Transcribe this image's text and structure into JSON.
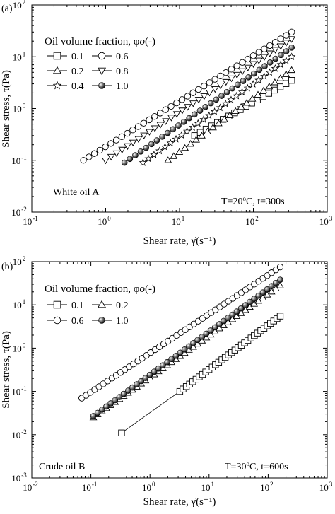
{
  "chart_data": [
    {
      "type": "scatter",
      "panel_label": "(a)",
      "xscale": "log",
      "yscale": "log",
      "xlim": [
        0.1,
        1000
      ],
      "ylim": [
        0.01,
        100
      ],
      "xticks": [
        {
          "value": 0.1,
          "label": "10",
          "exp": "-1"
        },
        {
          "value": 1,
          "label": "10",
          "exp": "0"
        },
        {
          "value": 10,
          "label": "10",
          "exp": "1"
        },
        {
          "value": 100,
          "label": "10",
          "exp": "2"
        },
        {
          "value": 1000,
          "label": "10",
          "exp": "3"
        }
      ],
      "yticks": [
        {
          "value": 0.01,
          "label": "10",
          "exp": "-2"
        },
        {
          "value": 0.1,
          "label": "10",
          "exp": "-1"
        },
        {
          "value": 1,
          "label": "10",
          "exp": "0"
        },
        {
          "value": 10,
          "label": "10",
          "exp": "1"
        },
        {
          "value": 100,
          "label": "10",
          "exp": "2"
        }
      ],
      "xlabel": "Shear rate, γ̇(s⁻¹)",
      "ylabel": "Shear stress, τ(Pa)",
      "legend_title": "Oil volume fraction, φo(-)",
      "legend_placement": "top-left",
      "annotation_left": "White oil A",
      "annotation_right": "T=20°C, t=300s",
      "series": [
        {
          "name": "0.1",
          "marker": "square",
          "x_start": 16,
          "x_end": 330,
          "y_start": 0.3,
          "y_end": 3.5
        },
        {
          "name": "0.6",
          "marker": "circle",
          "x_start": 0.5,
          "x_end": 330,
          "y_start": 0.1,
          "y_end": 30
        },
        {
          "name": "0.2",
          "marker": "triangle-up",
          "x_start": 7,
          "x_end": 330,
          "y_start": 0.1,
          "y_end": 5.5
        },
        {
          "name": "0.8",
          "marker": "triangle-down",
          "x_start": 1.0,
          "x_end": 330,
          "y_start": 0.1,
          "y_end": 22
        },
        {
          "name": "0.4",
          "marker": "star",
          "x_start": 3.2,
          "x_end": 330,
          "y_start": 0.09,
          "y_end": 10
        },
        {
          "name": "1.0",
          "marker": "ball",
          "x_start": 1.8,
          "x_end": 330,
          "y_start": 0.09,
          "y_end": 15
        }
      ]
    },
    {
      "type": "scatter",
      "panel_label": "(b)",
      "xscale": "log",
      "yscale": "log",
      "xlim": [
        0.01,
        1000
      ],
      "ylim": [
        0.001,
        100
      ],
      "xticks": [
        {
          "value": 0.01,
          "label": "10",
          "exp": "-2"
        },
        {
          "value": 0.1,
          "label": "10",
          "exp": "-1"
        },
        {
          "value": 1,
          "label": "10",
          "exp": "0"
        },
        {
          "value": 10,
          "label": "10",
          "exp": "1"
        },
        {
          "value": 100,
          "label": "10",
          "exp": "2"
        },
        {
          "value": 1000,
          "label": "10",
          "exp": "3"
        }
      ],
      "yticks": [
        {
          "value": 0.001,
          "label": "10",
          "exp": "-3"
        },
        {
          "value": 0.01,
          "label": "10",
          "exp": "-2"
        },
        {
          "value": 0.1,
          "label": "10",
          "exp": "-1"
        },
        {
          "value": 1,
          "label": "10",
          "exp": "0"
        },
        {
          "value": 10,
          "label": "10",
          "exp": "1"
        },
        {
          "value": 100,
          "label": "10",
          "exp": "2"
        }
      ],
      "xlabel": "Shear rate, γ̇(s⁻¹)",
      "ylabel": "Shear stress, τ(Pa)",
      "legend_title": "Oil volume fraction, φo(-)",
      "legend_placement": "top-left",
      "annotation_left": "Crude oil B",
      "annotation_right": "T=30°C, t=600s",
      "series": [
        {
          "name": "0.1",
          "marker": "square",
          "x_start": 0.33,
          "x_end": 160,
          "y_start": 0.011,
          "y_end": 5.5,
          "gap_after_first": true,
          "second_x": 3.2,
          "second_y": 0.1
        },
        {
          "name": "0.2",
          "marker": "triangle-up",
          "x_start": 0.11,
          "x_end": 160,
          "y_start": 0.025,
          "y_end": 28
        },
        {
          "name": "0.6",
          "marker": "circle",
          "x_start": 0.07,
          "x_end": 160,
          "y_start": 0.07,
          "y_end": 75
        },
        {
          "name": "1.0",
          "marker": "ball",
          "x_start": 0.11,
          "x_end": 160,
          "y_start": 0.027,
          "y_end": 38
        }
      ]
    }
  ]
}
